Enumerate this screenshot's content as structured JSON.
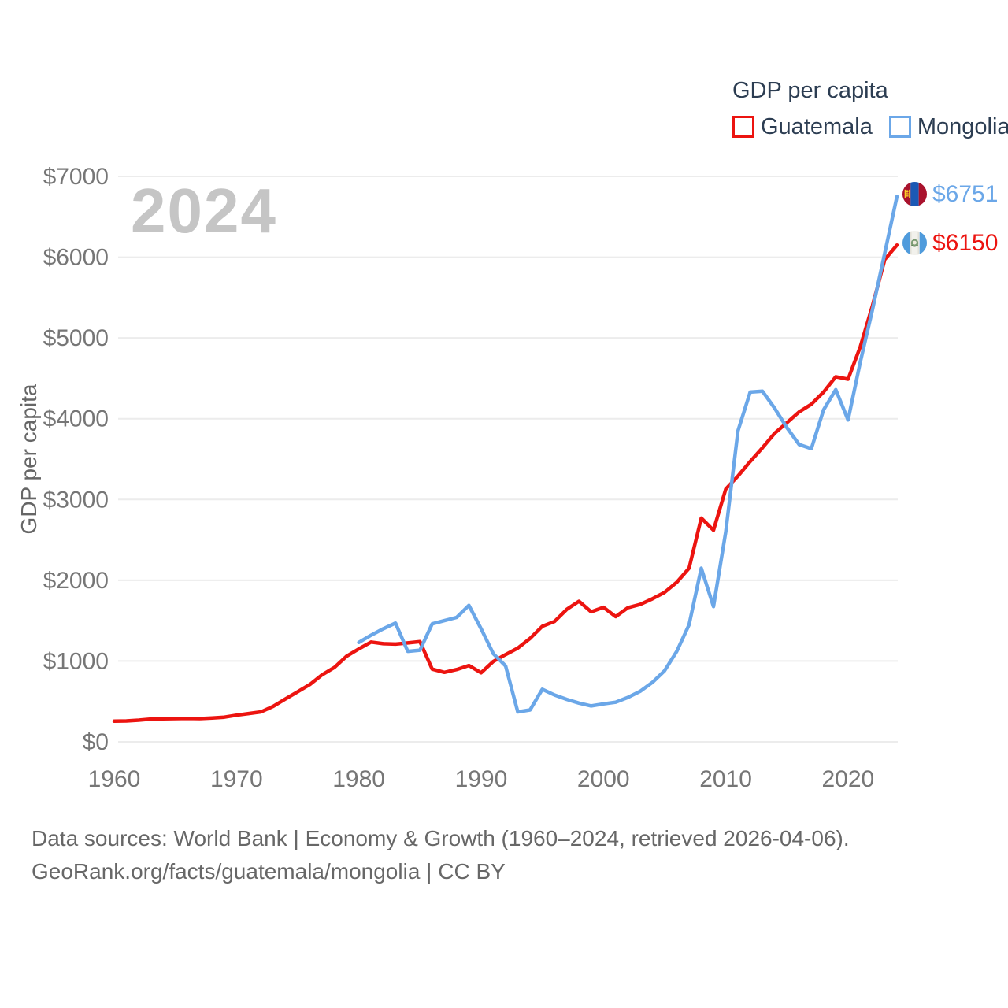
{
  "watermark": "2024",
  "legend": {
    "title": "GDP per capita",
    "items": [
      {
        "label": "Guatemala",
        "color": "#ec1410"
      },
      {
        "label": "Mongolia",
        "color": "#6ba7e8"
      }
    ]
  },
  "end_labels": [
    {
      "series": "Mongolia",
      "value_label": "$6751",
      "color": "#6ba7e8",
      "flag": "mongolia-flag"
    },
    {
      "series": "Guatemala",
      "value_label": "$6150",
      "color": "#ec1410",
      "flag": "guatemala-flag"
    }
  ],
  "footer": {
    "line1": "Data sources: World Bank | Economy & Growth (1960–2024, retrieved 2026-04-06).",
    "line2": "GeoRank.org/facts/guatemala/mongolia | CC BY"
  },
  "chart_data": {
    "type": "line",
    "title": "GDP per capita",
    "xlabel": "",
    "ylabel": "GDP per capita",
    "xlim": [
      1960,
      2024
    ],
    "ylim": [
      0,
      7000
    ],
    "grid": "horizontal",
    "legend_position": "top-right",
    "x_ticks": [
      1960,
      1970,
      1980,
      1990,
      2000,
      2010,
      2020
    ],
    "y_ticks": [
      {
        "value": 0,
        "label": "$0"
      },
      {
        "value": 1000,
        "label": "$1000"
      },
      {
        "value": 2000,
        "label": "$2000"
      },
      {
        "value": 3000,
        "label": "$3000"
      },
      {
        "value": 4000,
        "label": "$4000"
      },
      {
        "value": 5000,
        "label": "$5000"
      },
      {
        "value": 6000,
        "label": "$6000"
      },
      {
        "value": 7000,
        "label": "$7000"
      }
    ],
    "series": [
      {
        "name": "Guatemala",
        "color": "#ec1410",
        "start_year": 1960,
        "end_value_label": "$6150",
        "values": [
          255,
          258,
          268,
          282,
          285,
          288,
          290,
          288,
          295,
          305,
          330,
          350,
          370,
          440,
          530,
          620,
          710,
          830,
          920,
          1060,
          1150,
          1235,
          1215,
          1210,
          1225,
          1240,
          900,
          860,
          895,
          945,
          855,
          995,
          1080,
          1160,
          1280,
          1430,
          1490,
          1640,
          1740,
          1610,
          1665,
          1550,
          1660,
          1700,
          1770,
          1850,
          1975,
          2150,
          2770,
          2620,
          3130,
          3290,
          3470,
          3640,
          3820,
          3950,
          4085,
          4180,
          4330,
          4520,
          4490,
          4890,
          5400,
          5970,
          6150
        ]
      },
      {
        "name": "Mongolia",
        "color": "#6ba7e8",
        "start_year": 1980,
        "end_value_label": "$6751",
        "values": [
          1230,
          1320,
          1400,
          1470,
          1120,
          1135,
          1460,
          1500,
          1540,
          1690,
          1400,
          1090,
          940,
          370,
          395,
          650,
          580,
          525,
          480,
          445,
          470,
          490,
          550,
          625,
          735,
          880,
          1120,
          1450,
          2150,
          1675,
          2600,
          3850,
          4330,
          4340,
          4130,
          3890,
          3680,
          3630,
          4110,
          4360,
          3985,
          4700,
          5350,
          6050,
          6751
        ]
      }
    ]
  }
}
